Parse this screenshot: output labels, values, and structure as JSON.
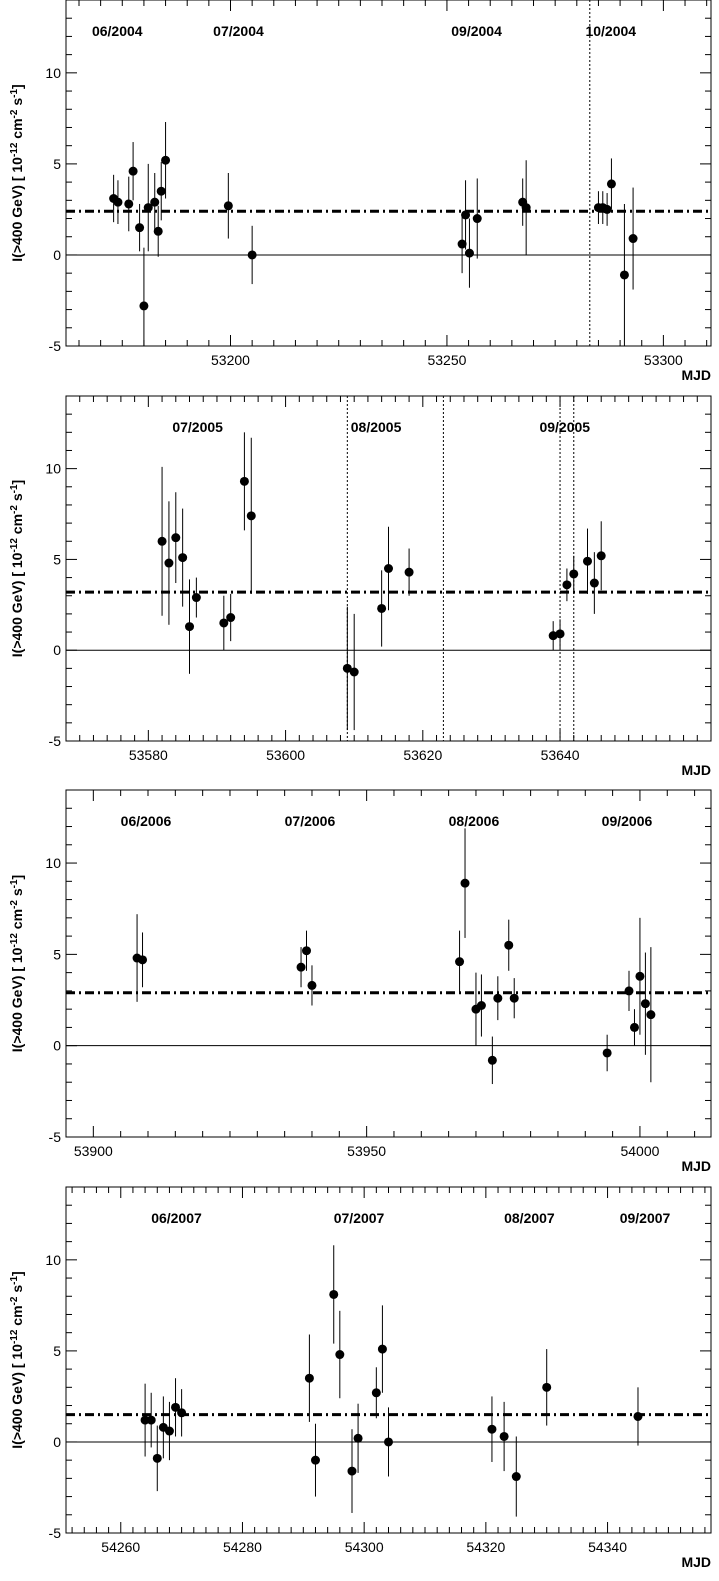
{
  "chart_data": [
    {
      "type": "scatter",
      "xlabel": "MJD",
      "ylabel": "I(>400 GeV) [ 10^-12 cm^-2 s^-1]",
      "xlim": [
        53162,
        53311
      ],
      "ylim": [
        -5,
        14
      ],
      "xticks": [
        53200,
        53250,
        53300
      ],
      "yticks": [
        -5,
        0,
        5,
        10
      ],
      "baseline": 0,
      "mean": 2.4,
      "month_labels": [
        {
          "text": "06/2004",
          "x": 53168
        },
        {
          "text": "07/2004",
          "x": 53196
        },
        {
          "text": "09/2004",
          "x": 53251
        },
        {
          "text": "10/2004",
          "x": 53282
        }
      ],
      "separators": [
        53283
      ],
      "points": [
        {
          "x": 53173,
          "y": 3.1,
          "err": 1.3
        },
        {
          "x": 53174,
          "y": 2.9,
          "err": 1.2
        },
        {
          "x": 53176.5,
          "y": 2.8,
          "err": 1.5
        },
        {
          "x": 53177.5,
          "y": 4.6,
          "err": 1.6
        },
        {
          "x": 53179,
          "y": 1.5,
          "err": 1.3
        },
        {
          "x": 53180,
          "y": -2.8,
          "err": 3.2
        },
        {
          "x": 53181,
          "y": 2.6,
          "err": 2.4
        },
        {
          "x": 53182.5,
          "y": 2.9,
          "err": 1.6
        },
        {
          "x": 53183.3,
          "y": 1.3,
          "err": 1.4
        },
        {
          "x": 53184,
          "y": 3.5,
          "err": 1.6
        },
        {
          "x": 53185,
          "y": 5.2,
          "err": 2.1
        },
        {
          "x": 53199.5,
          "y": 2.7,
          "err": 1.8
        },
        {
          "x": 53205,
          "y": 0.0,
          "err": 1.6
        },
        {
          "x": 53253.5,
          "y": 0.6,
          "err": 1.6
        },
        {
          "x": 53254.3,
          "y": 2.2,
          "err": 1.9
        },
        {
          "x": 53255.2,
          "y": 0.1,
          "err": 1.9
        },
        {
          "x": 53257,
          "y": 2.0,
          "err": 2.2
        },
        {
          "x": 53267.5,
          "y": 2.9,
          "err": 1.3
        },
        {
          "x": 53268.3,
          "y": 2.6,
          "err": 2.6
        },
        {
          "x": 53285,
          "y": 2.6,
          "err": 0.9
        },
        {
          "x": 53286,
          "y": 2.6,
          "err": 0.9
        },
        {
          "x": 53287,
          "y": 2.5,
          "err": 0.9
        },
        {
          "x": 53288,
          "y": 3.9,
          "err": 1.4
        },
        {
          "x": 53291,
          "y": -1.1,
          "err": 3.9
        },
        {
          "x": 53293,
          "y": 0.9,
          "err": 2.8
        }
      ]
    },
    {
      "type": "scatter",
      "xlabel": "MJD",
      "ylabel": "I(>400 GeV) [ 10^-12 cm^-2 s^-1]",
      "xlim": [
        53568,
        53662
      ],
      "ylim": [
        -5,
        14
      ],
      "xticks": [
        53580,
        53600,
        53620,
        53640
      ],
      "yticks": [
        -5,
        0,
        5,
        10
      ],
      "baseline": 0,
      "mean": 3.2,
      "month_labels": [
        {
          "text": "07/2005",
          "x": 53583.5
        },
        {
          "text": "08/2005",
          "x": 53609.5
        },
        {
          "text": "09/2005",
          "x": 53637
        }
      ],
      "separators": [
        53609,
        53623,
        53640,
        53642
      ],
      "points": [
        {
          "x": 53582,
          "y": 6.0,
          "err": 4.1
        },
        {
          "x": 53583,
          "y": 4.8,
          "err": 3.4
        },
        {
          "x": 53584,
          "y": 6.2,
          "err": 2.5
        },
        {
          "x": 53585,
          "y": 5.1,
          "err": 2.7
        },
        {
          "x": 53586,
          "y": 1.3,
          "err": 2.6
        },
        {
          "x": 53587,
          "y": 2.9,
          "err": 1.1
        },
        {
          "x": 53591,
          "y": 1.5,
          "err": 1.5
        },
        {
          "x": 53592,
          "y": 1.8,
          "err": 1.3
        },
        {
          "x": 53594,
          "y": 9.3,
          "err": 2.7
        },
        {
          "x": 53595,
          "y": 7.4,
          "err": 4.3
        },
        {
          "x": 53609,
          "y": -1.0,
          "err": 3.4
        },
        {
          "x": 53610,
          "y": -1.2,
          "err": 3.2
        },
        {
          "x": 53614,
          "y": 2.3,
          "err": 2.1
        },
        {
          "x": 53615,
          "y": 4.5,
          "err": 2.3
        },
        {
          "x": 53618,
          "y": 4.3,
          "err": 1.3
        },
        {
          "x": 53639,
          "y": 0.8,
          "err": 0.8
        },
        {
          "x": 53640,
          "y": 0.9,
          "err": 0.8
        },
        {
          "x": 53641,
          "y": 3.6,
          "err": 0.9
        },
        {
          "x": 53642,
          "y": 4.2,
          "err": 1.0
        },
        {
          "x": 53644,
          "y": 4.9,
          "err": 1.8
        },
        {
          "x": 53645,
          "y": 3.7,
          "err": 1.7
        },
        {
          "x": 53646,
          "y": 5.2,
          "err": 1.9
        }
      ]
    },
    {
      "type": "scatter",
      "xlabel": "MJD",
      "ylabel": "I(>400 GeV) [ 10^-12 cm^-2 s^-1]",
      "xlim": [
        53895,
        54013
      ],
      "ylim": [
        -5,
        14
      ],
      "xticks": [
        53900,
        53950,
        54000
      ],
      "yticks": [
        -5,
        0,
        5,
        10
      ],
      "baseline": 0,
      "mean": 2.9,
      "month_labels": [
        {
          "text": "06/2006",
          "x": 53905
        },
        {
          "text": "07/2006",
          "x": 53935
        },
        {
          "text": "08/2006",
          "x": 53965
        },
        {
          "text": "09/2006",
          "x": 53993
        }
      ],
      "separators": [],
      "points": [
        {
          "x": 53908,
          "y": 4.8,
          "err": 2.4
        },
        {
          "x": 53909,
          "y": 4.7,
          "err": 1.5
        },
        {
          "x": 53938,
          "y": 4.3,
          "err": 1.1
        },
        {
          "x": 53939,
          "y": 5.2,
          "err": 1.1
        },
        {
          "x": 53940,
          "y": 3.3,
          "err": 1.1
        },
        {
          "x": 53967,
          "y": 4.6,
          "err": 1.7
        },
        {
          "x": 53968,
          "y": 8.9,
          "err": 3.0
        },
        {
          "x": 53970,
          "y": 2.0,
          "err": 2.0
        },
        {
          "x": 53971,
          "y": 2.2,
          "err": 1.7
        },
        {
          "x": 53973,
          "y": -0.8,
          "err": 1.3
        },
        {
          "x": 53974,
          "y": 2.6,
          "err": 1.2
        },
        {
          "x": 53976,
          "y": 5.5,
          "err": 1.4
        },
        {
          "x": 53977,
          "y": 2.6,
          "err": 1.1
        },
        {
          "x": 53994,
          "y": -0.4,
          "err": 1.0
        },
        {
          "x": 53998,
          "y": 3.0,
          "err": 1.1
        },
        {
          "x": 53999,
          "y": 1.0,
          "err": 1.0
        },
        {
          "x": 54000,
          "y": 3.8,
          "err": 3.2
        },
        {
          "x": 54001,
          "y": 2.3,
          "err": 2.8
        },
        {
          "x": 54002,
          "y": 1.7,
          "err": 3.7
        }
      ]
    },
    {
      "type": "scatter",
      "xlabel": "MJD",
      "ylabel": "I(>400 GeV) [ 10^-12 cm^-2 s^-1]",
      "xlim": [
        54251,
        54357
      ],
      "ylim": [
        -5,
        14
      ],
      "xticks": [
        54260,
        54280,
        54300,
        54320,
        54340
      ],
      "yticks": [
        -5,
        0,
        5,
        10
      ],
      "baseline": 0,
      "mean": 1.5,
      "month_labels": [
        {
          "text": "06/2007",
          "x": 54265
        },
        {
          "text": "07/2007",
          "x": 54295
        },
        {
          "text": "08/2007",
          "x": 54323
        },
        {
          "text": "09/2007",
          "x": 54342
        }
      ],
      "separators": [],
      "points": [
        {
          "x": 54264,
          "y": 1.2,
          "err": 2.0
        },
        {
          "x": 54265,
          "y": 1.2,
          "err": 1.5
        },
        {
          "x": 54266,
          "y": -0.9,
          "err": 1.8
        },
        {
          "x": 54267,
          "y": 0.8,
          "err": 1.7
        },
        {
          "x": 54268,
          "y": 0.6,
          "err": 1.6
        },
        {
          "x": 54269,
          "y": 1.9,
          "err": 1.6
        },
        {
          "x": 54270,
          "y": 1.6,
          "err": 1.3
        },
        {
          "x": 54291,
          "y": 3.5,
          "err": 2.4
        },
        {
          "x": 54292,
          "y": -1.0,
          "err": 2.0
        },
        {
          "x": 54295,
          "y": 8.1,
          "err": 2.7
        },
        {
          "x": 54296,
          "y": 4.8,
          "err": 2.4
        },
        {
          "x": 54298,
          "y": -1.6,
          "err": 2.3
        },
        {
          "x": 54299,
          "y": 0.2,
          "err": 1.9
        },
        {
          "x": 54302,
          "y": 2.7,
          "err": 1.4
        },
        {
          "x": 54303,
          "y": 5.1,
          "err": 2.4
        },
        {
          "x": 54304,
          "y": 0.0,
          "err": 1.9
        },
        {
          "x": 54321,
          "y": 0.7,
          "err": 1.8
        },
        {
          "x": 54323,
          "y": 0.3,
          "err": 1.9
        },
        {
          "x": 54325,
          "y": -1.9,
          "err": 2.2
        },
        {
          "x": 54330,
          "y": 3.0,
          "err": 2.1
        },
        {
          "x": 54345,
          "y": 1.4,
          "err": 1.6
        }
      ]
    }
  ]
}
